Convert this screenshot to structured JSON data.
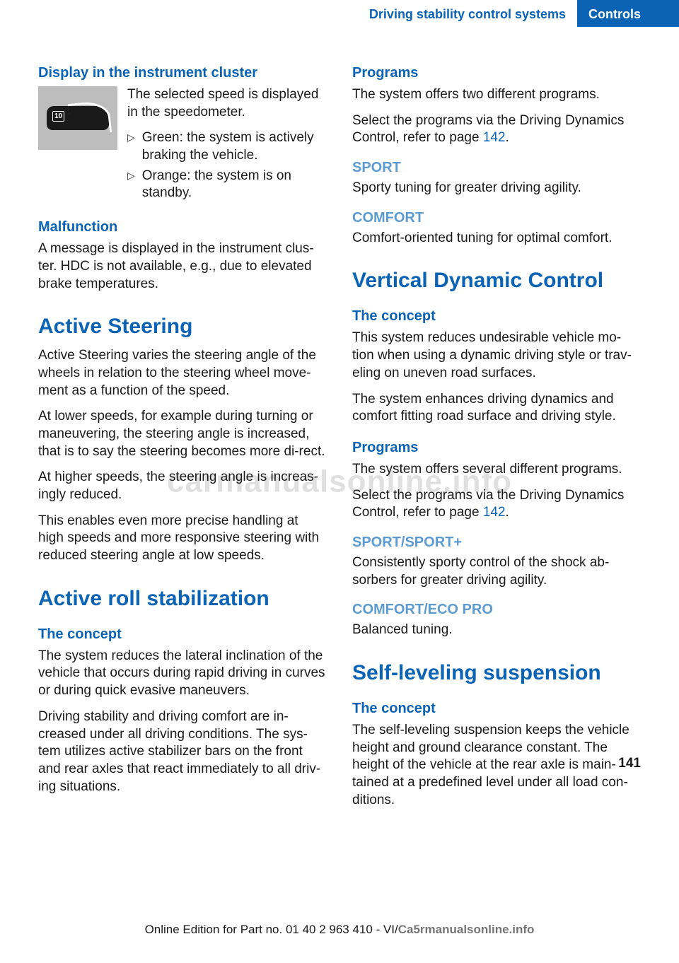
{
  "header": {
    "breadcrumb_section": "Driving stability control systems",
    "breadcrumb_tab": "Controls"
  },
  "left": {
    "h_display": "Display in the instrument cluster",
    "display_intro": "The selected speed is displayed in the speedometer.",
    "display_dash_num": "10",
    "bullets": [
      "Green: the system is actively braking the vehicle.",
      "Orange: the system is on standby."
    ],
    "h_malfunction": "Malfunction",
    "malfunction_body": "A message is displayed in the instrument clus‐ter. HDC is not available, e.g., due to elevated brake temperatures.",
    "h_active_steering": "Active Steering",
    "as_p1": "Active Steering varies the steering angle of the wheels in relation to the steering wheel move‐ment as a function of the speed.",
    "as_p2": "At lower speeds, for example during turning or maneuvering, the steering angle is increased, that is to say the steering becomes more di‐rect.",
    "as_p3": "At higher speeds, the steering angle is increas‐ingly reduced.",
    "as_p4": "This enables even more precise handling at high speeds and more responsive steering with reduced steering angle at low speeds.",
    "h_roll": "Active roll stabilization",
    "h_roll_concept": "The concept",
    "roll_p1": "The system reduces the lateral inclination of the vehicle that occurs during rapid driving in curves or during quick evasive maneuvers.",
    "roll_p2": "Driving stability and driving comfort are in‐creased under all driving conditions. The sys‐tem utilizes active stabilizer bars on the front and rear axles that react immediately to all driv‐ing situations."
  },
  "right": {
    "h_programs": "Programs",
    "programs_p1": "The system offers two different programs.",
    "programs_p2a": "Select the programs via the Driving Dynamics Control, refer to page ",
    "programs_link": "142",
    "programs_p2b": ".",
    "h_sport": "SPORT",
    "sport_body": "Sporty tuning for greater driving agility.",
    "h_comfort": "COMFORT",
    "comfort_body": "Comfort-oriented tuning for optimal comfort.",
    "h_vdc": "Vertical Dynamic Control",
    "h_vdc_concept": "The concept",
    "vdc_p1": "This system reduces undesirable vehicle mo‐tion when using a dynamic driving style or trav‐eling on uneven road surfaces.",
    "vdc_p2": "The system enhances driving dynamics and comfort fitting road surface and driving style.",
    "h_vdc_programs": "Programs",
    "vdc_prog_p1": "The system offers several different programs.",
    "vdc_prog_p2a": "Select the programs via the Driving Dynamics Control, refer to page ",
    "vdc_prog_link": "142",
    "vdc_prog_p2b": ".",
    "h_sportplus": "SPORT/SPORT+",
    "sportplus_body": "Consistently sporty control of the shock ab‐sorbers for greater driving agility.",
    "h_comforteco": "COMFORT/ECO PRO",
    "comforteco_body": "Balanced tuning.",
    "h_selflevel": "Self-leveling suspension",
    "h_selflevel_concept": "The concept",
    "selflevel_body": "The self-leveling suspension keeps the vehicle height and ground clearance constant. The height of the vehicle at the rear axle is main‐tained at a predefined level under all load con‐ditions."
  },
  "footer": {
    "line_a": "Online Edition for Part no. 01 40 2 963 410 - VI/",
    "line_wm": "Ca5rmanualsonline.info",
    "page_number": "141"
  },
  "watermark": "carmanualsonline.info"
}
